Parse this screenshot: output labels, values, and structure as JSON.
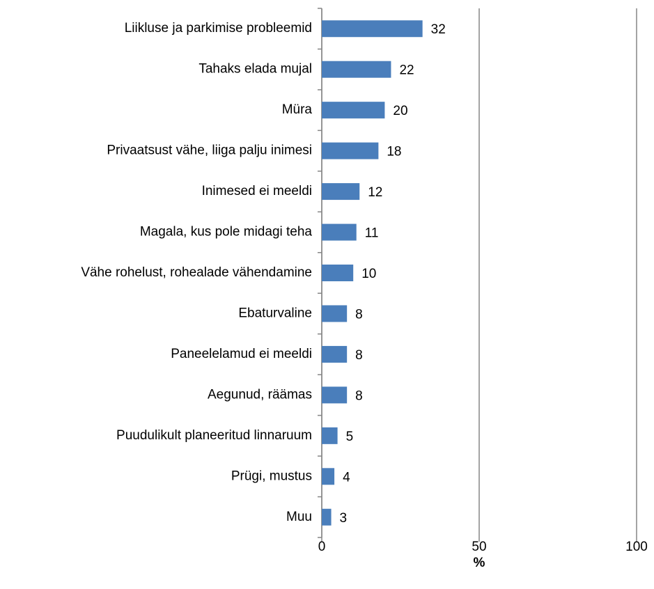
{
  "chart_data": {
    "type": "barh",
    "categories": [
      "Liikluse ja parkimise probleemid",
      "Tahaks elada mujal",
      "Müra",
      "Privaatsust vähe, liiga palju inimesi",
      "Inimesed ei meeldi",
      "Magala, kus pole midagi teha",
      "Vähe rohelust, rohealade vähendamine",
      "Ebaturvaline",
      "Paneelelamud ei meeldi",
      "Aegunud, räämas",
      "Puudulikult planeeritud linnaruum",
      "Prügi, mustus",
      "Muu"
    ],
    "values": [
      32,
      22,
      20,
      18,
      12,
      11,
      10,
      8,
      8,
      8,
      5,
      4,
      3
    ],
    "color": "#4a7ebb",
    "xlabel": "%",
    "xlim": [
      0,
      100
    ],
    "xticks": [
      0,
      50,
      100
    ],
    "grid": true
  }
}
